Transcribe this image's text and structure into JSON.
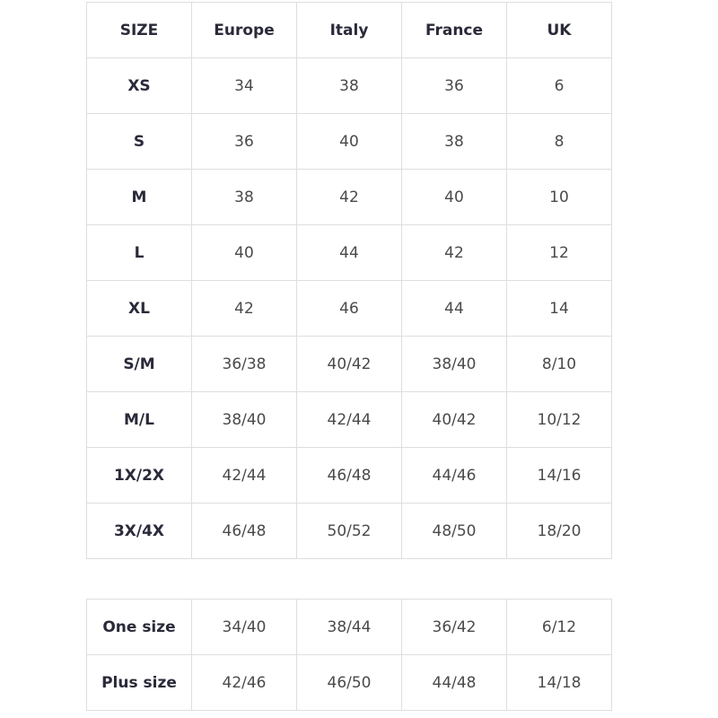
{
  "size_chart": {
    "headers": [
      "SIZE",
      "Europe",
      "Italy",
      "France",
      "UK"
    ],
    "rows": [
      [
        "XS",
        "34",
        "38",
        "36",
        "6"
      ],
      [
        "S",
        "36",
        "40",
        "38",
        "8"
      ],
      [
        "M",
        "38",
        "42",
        "40",
        "10"
      ],
      [
        "L",
        "40",
        "44",
        "42",
        "12"
      ],
      [
        "XL",
        "42",
        "46",
        "44",
        "14"
      ],
      [
        "S/M",
        "36/38",
        "40/42",
        "38/40",
        "8/10"
      ],
      [
        "M/L",
        "38/40",
        "42/44",
        "40/42",
        "10/12"
      ],
      [
        "1X/2X",
        "42/44",
        "46/48",
        "44/46",
        "14/16"
      ],
      [
        "3X/4X",
        "46/48",
        "50/52",
        "48/50",
        "18/20"
      ]
    ]
  },
  "extra_sizes": {
    "rows": [
      [
        "One size",
        "34/40",
        "38/44",
        "36/42",
        "6/12"
      ],
      [
        "Plus size",
        "42/46",
        "46/50",
        "44/48",
        "14/18"
      ]
    ]
  },
  "colors": {
    "border": "#dedede",
    "header_text": "#2a2a3a",
    "value_text": "#4a4a4a"
  }
}
